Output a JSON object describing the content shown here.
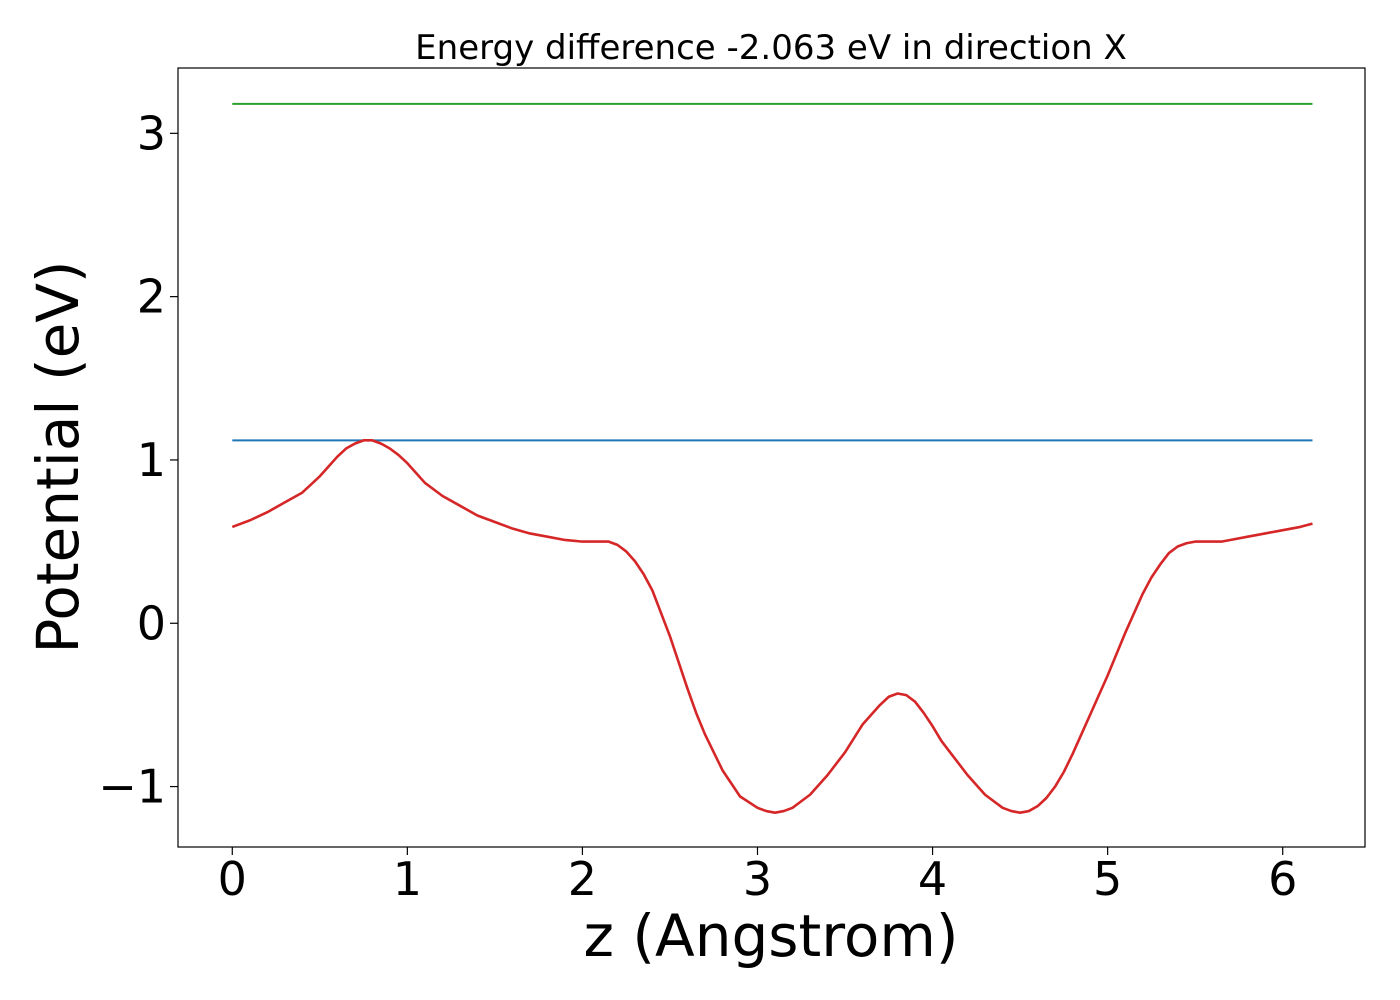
{
  "chart_data": {
    "type": "line",
    "title": "Energy difference -2.063 eV in direction X",
    "xlabel": "z (Angstrom)",
    "ylabel": "Potential (eV)",
    "xlim": [
      -0.31,
      6.47
    ],
    "ylim": [
      -1.37,
      3.4
    ],
    "xticks": [
      0,
      1,
      2,
      3,
      4,
      5,
      6
    ],
    "yticks": [
      -1,
      0,
      1,
      2,
      3
    ],
    "ytick_labels": [
      "−1",
      "0",
      "1",
      "2",
      "3"
    ],
    "grid": false,
    "legend": "none",
    "series": [
      {
        "color": "#2ca02c",
        "x": [
          0.0,
          6.17
        ],
        "y": [
          3.18,
          3.18
        ]
      },
      {
        "color": "#1f77b4",
        "x": [
          0.0,
          6.17
        ],
        "y": [
          1.12,
          1.12
        ]
      },
      {
        "color": "#d62728",
        "x": [
          0.0,
          0.1,
          0.2,
          0.3,
          0.4,
          0.45,
          0.5,
          0.55,
          0.6,
          0.65,
          0.7,
          0.75,
          0.8,
          0.85,
          0.9,
          0.95,
          1.0,
          1.05,
          1.1,
          1.2,
          1.3,
          1.4,
          1.5,
          1.6,
          1.7,
          1.8,
          1.9,
          2.0,
          2.1,
          2.15,
          2.2,
          2.25,
          2.3,
          2.35,
          2.4,
          2.45,
          2.5,
          2.55,
          2.6,
          2.65,
          2.7,
          2.8,
          2.9,
          3.0,
          3.05,
          3.1,
          3.15,
          3.2,
          3.25,
          3.3,
          3.4,
          3.5,
          3.6,
          3.7,
          3.75,
          3.8,
          3.85,
          3.9,
          3.95,
          4.0,
          4.05,
          4.1,
          4.2,
          4.3,
          4.4,
          4.45,
          4.5,
          4.55,
          4.6,
          4.65,
          4.7,
          4.75,
          4.8,
          4.85,
          4.9,
          5.0,
          5.1,
          5.2,
          5.25,
          5.3,
          5.35,
          5.4,
          5.45,
          5.5,
          5.55,
          5.6,
          5.65,
          5.7,
          5.8,
          5.9,
          6.0,
          6.1,
          6.17
        ],
        "y": [
          0.59,
          0.63,
          0.68,
          0.74,
          0.8,
          0.85,
          0.9,
          0.96,
          1.02,
          1.07,
          1.1,
          1.12,
          1.12,
          1.1,
          1.07,
          1.03,
          0.98,
          0.92,
          0.86,
          0.78,
          0.72,
          0.66,
          0.62,
          0.58,
          0.55,
          0.53,
          0.51,
          0.5,
          0.5,
          0.5,
          0.48,
          0.44,
          0.38,
          0.3,
          0.2,
          0.06,
          -0.08,
          -0.24,
          -0.4,
          -0.55,
          -0.68,
          -0.9,
          -1.06,
          -1.13,
          -1.15,
          -1.16,
          -1.15,
          -1.13,
          -1.09,
          -1.05,
          -0.93,
          -0.79,
          -0.62,
          -0.5,
          -0.45,
          -0.43,
          -0.44,
          -0.48,
          -0.55,
          -0.63,
          -0.72,
          -0.79,
          -0.93,
          -1.05,
          -1.13,
          -1.15,
          -1.16,
          -1.15,
          -1.12,
          -1.07,
          -1.0,
          -0.91,
          -0.8,
          -0.68,
          -0.56,
          -0.32,
          -0.06,
          0.18,
          0.28,
          0.36,
          0.43,
          0.47,
          0.49,
          0.5,
          0.5,
          0.5,
          0.5,
          0.51,
          0.53,
          0.55,
          0.57,
          0.59,
          0.61
        ]
      }
    ]
  }
}
